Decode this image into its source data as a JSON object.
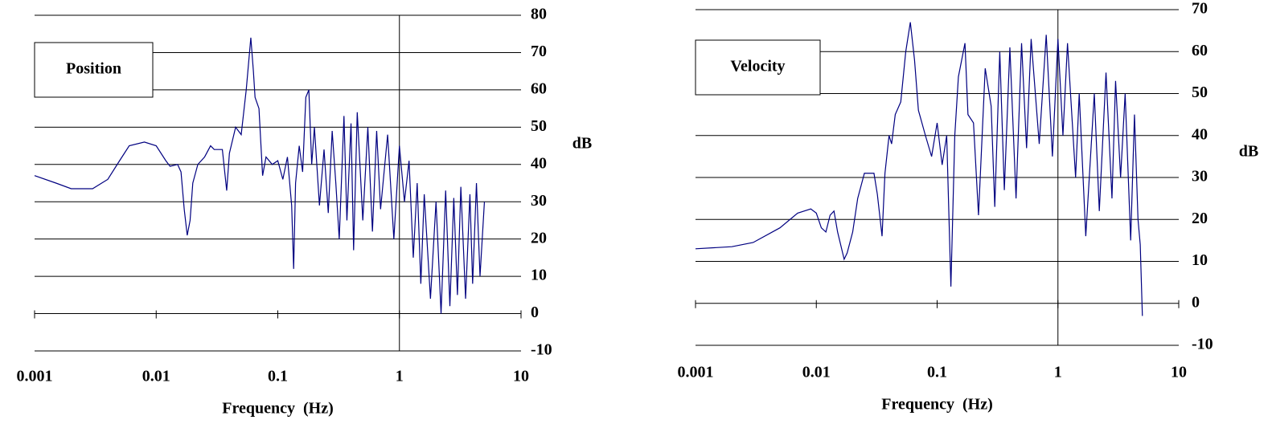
{
  "chart_data": [
    {
      "type": "line",
      "xlabel": "Frequency  (Hz)",
      "ylabel": "dB",
      "log_x": true,
      "grid": true,
      "xlim": [
        0.001,
        10
      ],
      "xticks": [
        0.001,
        0.01,
        0.1,
        1,
        10
      ],
      "ylim": [
        -10,
        80
      ],
      "yticks": [
        -10,
        0,
        10,
        20,
        30,
        40,
        50,
        60,
        70,
        80
      ],
      "x": [
        0.001,
        0.0015,
        0.002,
        0.003,
        0.004,
        0.005,
        0.006,
        0.008,
        0.01,
        0.012,
        0.013,
        0.015,
        0.016,
        0.017,
        0.018,
        0.019,
        0.02,
        0.022,
        0.025,
        0.028,
        0.03,
        0.035,
        0.038,
        0.04,
        0.045,
        0.05,
        0.055,
        0.06,
        0.063,
        0.065,
        0.07,
        0.075,
        0.08,
        0.09,
        0.1,
        0.11,
        0.12,
        0.13,
        0.135,
        0.14,
        0.15,
        0.16,
        0.17,
        0.18,
        0.19,
        0.2,
        0.22,
        0.24,
        0.26,
        0.28,
        0.3,
        0.32,
        0.35,
        0.37,
        0.4,
        0.42,
        0.45,
        0.5,
        0.55,
        0.6,
        0.65,
        0.7,
        0.8,
        0.9,
        1,
        1.1,
        1.2,
        1.3,
        1.4,
        1.5,
        1.6,
        1.8,
        2,
        2.2,
        2.4,
        2.6,
        2.8,
        3,
        3.2,
        3.5,
        3.8,
        4,
        4.3,
        4.6,
        5
      ],
      "series": [
        {
          "name": "Position",
          "color": "#000080",
          "values": [
            37,
            35,
            33.5,
            33.5,
            36,
            41,
            45,
            46,
            45,
            41,
            39.5,
            40,
            38,
            28,
            21,
            25,
            35,
            40,
            42,
            45,
            44,
            44,
            33,
            43,
            50,
            48,
            60,
            74,
            65,
            58,
            55,
            37,
            42,
            40,
            41,
            36,
            42,
            29,
            12,
            35,
            45,
            38,
            58,
            60,
            40,
            50,
            29,
            44,
            27,
            49,
            35,
            20,
            53,
            25,
            51,
            17,
            54,
            25,
            50,
            22,
            49,
            28,
            48,
            20,
            45,
            30,
            41,
            15,
            35,
            8,
            32,
            4,
            30,
            0,
            33,
            2,
            31,
            5,
            34,
            4,
            32,
            8,
            35,
            10,
            30
          ]
        }
      ]
    },
    {
      "type": "line",
      "xlabel": "Frequency  (Hz)",
      "ylabel": "dB",
      "log_x": true,
      "grid": true,
      "xlim": [
        0.001,
        10
      ],
      "xticks": [
        0.001,
        0.01,
        0.1,
        1,
        10
      ],
      "ylim": [
        -10,
        70
      ],
      "yticks": [
        -10,
        0,
        10,
        20,
        30,
        40,
        50,
        60,
        70
      ],
      "x": [
        0.001,
        0.002,
        0.003,
        0.005,
        0.007,
        0.009,
        0.01,
        0.011,
        0.012,
        0.013,
        0.014,
        0.015,
        0.017,
        0.018,
        0.02,
        0.022,
        0.025,
        0.03,
        0.032,
        0.035,
        0.037,
        0.04,
        0.042,
        0.045,
        0.05,
        0.055,
        0.06,
        0.065,
        0.07,
        0.08,
        0.09,
        0.1,
        0.11,
        0.12,
        0.13,
        0.14,
        0.15,
        0.17,
        0.18,
        0.2,
        0.22,
        0.25,
        0.28,
        0.3,
        0.33,
        0.36,
        0.4,
        0.45,
        0.5,
        0.55,
        0.6,
        0.7,
        0.8,
        0.9,
        1,
        1.1,
        1.2,
        1.4,
        1.5,
        1.7,
        2,
        2.2,
        2.5,
        2.8,
        3,
        3.3,
        3.6,
        4,
        4.3,
        4.6,
        4.8,
        5
      ],
      "series": [
        {
          "name": "Velocity",
          "color": "#000080",
          "values": [
            13,
            13.5,
            14.5,
            18,
            21.5,
            22.5,
            21.5,
            18,
            17,
            21,
            22,
            17,
            10.5,
            12,
            17,
            25,
            31,
            31,
            26,
            16,
            31,
            40,
            38,
            45,
            48,
            60,
            67,
            58,
            46,
            40,
            35,
            43,
            33,
            40,
            4,
            40,
            54,
            62,
            45,
            43,
            21,
            56,
            47,
            23,
            60,
            27,
            61,
            25,
            62,
            37,
            63,
            38,
            64,
            35,
            63,
            40,
            62,
            30,
            50,
            16,
            50,
            22,
            55,
            25,
            53,
            30,
            50,
            15,
            45,
            20,
            14,
            -3
          ]
        }
      ]
    }
  ]
}
